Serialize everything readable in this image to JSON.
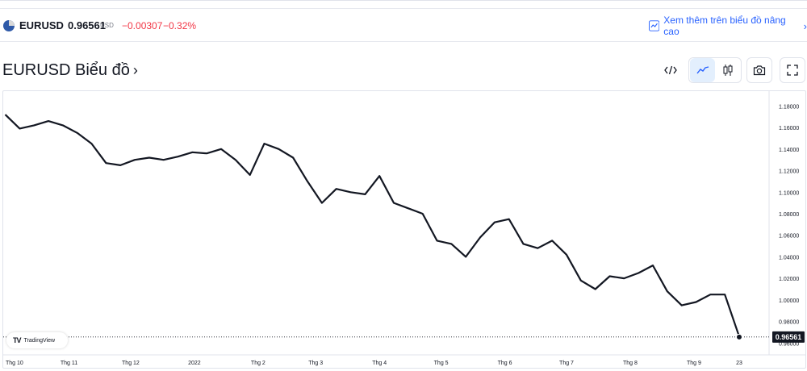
{
  "ticker": {
    "symbol": "EURUSD",
    "price": "0.96561",
    "currency": "USD",
    "change": "−0.00307",
    "change_pct": "−0.32%",
    "change_color": "#f23645"
  },
  "advanced_link": {
    "label": "Xem thêm trên biểu đồ nâng cao",
    "icon": "chart-line-icon",
    "color": "#2962ff"
  },
  "header": {
    "title": "EURUSD Biểu đồ",
    "title_arrow": "›"
  },
  "toolbar": {
    "embed_icon": "code-embed-icon",
    "line_icon": "line-chart-icon",
    "candle_icon": "candlestick-icon",
    "camera_icon": "camera-icon",
    "fullscreen_icon": "fullscreen-icon",
    "active_color": "#e3effd"
  },
  "branding": {
    "label": "TradingView"
  },
  "chart_data": {
    "type": "line",
    "series": [
      {
        "color": "#131722",
        "x": [
          "2021-10-01",
          "2021-10-08",
          "2021-10-15",
          "2021-10-22",
          "2021-10-29",
          "2021-11-05",
          "2021-11-12",
          "2021-11-19",
          "2021-11-26",
          "2021-12-03",
          "2021-12-10",
          "2021-12-17",
          "2021-12-24",
          "2021-12-31",
          "2022-01-07",
          "2022-01-14",
          "2022-01-21",
          "2022-01-28",
          "2022-02-04",
          "2022-02-11",
          "2022-02-18",
          "2022-02-25",
          "2022-03-04",
          "2022-03-11",
          "2022-03-18",
          "2022-03-25",
          "2022-04-01",
          "2022-04-08",
          "2022-04-15",
          "2022-04-22",
          "2022-04-29",
          "2022-05-06",
          "2022-05-13",
          "2022-05-20",
          "2022-05-27",
          "2022-06-03",
          "2022-06-10",
          "2022-06-17",
          "2022-06-24",
          "2022-07-01",
          "2022-07-08",
          "2022-07-15",
          "2022-07-22",
          "2022-07-29",
          "2022-08-05",
          "2022-08-12",
          "2022-08-19",
          "2022-08-26",
          "2022-09-02",
          "2022-09-09",
          "2022-09-16",
          "2022-09-23"
        ],
        "values": [
          1.172,
          1.159,
          1.162,
          1.166,
          1.162,
          1.155,
          1.145,
          1.127,
          1.125,
          1.13,
          1.132,
          1.13,
          1.133,
          1.137,
          1.136,
          1.14,
          1.13,
          1.116,
          1.145,
          1.14,
          1.132,
          1.11,
          1.09,
          1.103,
          1.1,
          1.098,
          1.115,
          1.09,
          1.085,
          1.08,
          1.055,
          1.052,
          1.04,
          1.058,
          1.072,
          1.075,
          1.052,
          1.048,
          1.055,
          1.042,
          1.018,
          1.01,
          1.022,
          1.02,
          1.025,
          1.032,
          1.008,
          0.995,
          0.998,
          1.005,
          1.005,
          0.966
        ]
      }
    ],
    "ylim": [
      0.955,
      1.19
    ],
    "y_ticks": [
      "1.18000",
      "1.16000",
      "1.14000",
      "1.12000",
      "1.10000",
      "1.08000",
      "1.06000",
      "1.04000",
      "1.02000",
      "1.00000",
      "0.98000",
      "0.96000"
    ],
    "x_tick_labels": [
      "Thg 10",
      "Thg 11",
      "Thg 12",
      "2022",
      "Thg 2",
      "Thg 3",
      "Thg 4",
      "Thg 5",
      "Thg 6",
      "Thg 7",
      "Thg 8",
      "Thg 9",
      "23"
    ],
    "last_price_label": "0.96561",
    "grid": false,
    "legend": "none"
  }
}
